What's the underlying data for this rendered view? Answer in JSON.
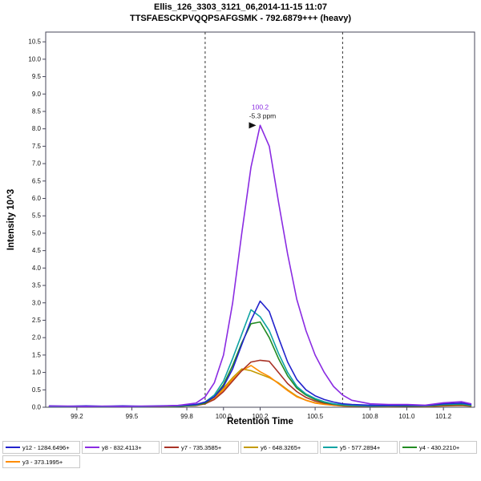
{
  "title": {
    "line1": "Ellis_126_3303_3121_06,2014-11-15 11:07",
    "line2": "TTSFAESCKPVQQPSAFGSMK - 792.6879+++ (heavy)"
  },
  "chart_data": {
    "type": "line",
    "title": "TTSFAESCKPVQQPSAFGSMK - 792.6879+++ (heavy)",
    "xlabel": "Retention Time",
    "ylabel": "Intensity 10^3",
    "xlim": [
      99.03,
      101.37
    ],
    "ylim": [
      0,
      10.78
    ],
    "x_ticks": [
      99.2,
      99.5,
      99.8,
      100.0,
      100.2,
      100.5,
      100.8,
      101.0,
      101.2
    ],
    "x_tick_labels": [
      "99.2",
      "99.5",
      "99.8",
      "100.0",
      "100.2",
      "100.5",
      "100.8",
      "101.0",
      "101.2"
    ],
    "y_ticks": [
      0.0,
      0.5,
      1.0,
      1.5,
      2.0,
      2.5,
      3.0,
      3.5,
      4.0,
      4.5,
      5.0,
      5.5,
      6.0,
      6.5,
      7.0,
      7.5,
      8.0,
      8.5,
      9.0,
      9.5,
      10.0,
      10.5
    ],
    "grid": false,
    "legend_position": "bottom",
    "peak_boundaries": [
      99.9,
      100.65
    ],
    "annotation": {
      "x": 100.2,
      "y": 8.1,
      "label": "100.2",
      "sub": "-5.3 ppm",
      "label_color": "#8a2be2"
    },
    "x": [
      99.05,
      99.15,
      99.25,
      99.35,
      99.45,
      99.55,
      99.65,
      99.75,
      99.85,
      99.9,
      99.95,
      100.0,
      100.05,
      100.1,
      100.15,
      100.2,
      100.25,
      100.3,
      100.35,
      100.4,
      100.45,
      100.5,
      100.55,
      100.6,
      100.65,
      100.7,
      100.8,
      100.9,
      101.0,
      101.1,
      101.2,
      101.3,
      101.35
    ],
    "series": [
      {
        "name": "y12 - 1284.6496+",
        "color": "#2222cc",
        "values": [
          0.04,
          0.03,
          0.04,
          0.03,
          0.04,
          0.03,
          0.04,
          0.05,
          0.08,
          0.15,
          0.3,
          0.6,
          1.1,
          1.8,
          2.5,
          3.05,
          2.75,
          2.0,
          1.3,
          0.8,
          0.5,
          0.33,
          0.22,
          0.15,
          0.1,
          0.08,
          0.06,
          0.05,
          0.06,
          0.05,
          0.1,
          0.12,
          0.08
        ]
      },
      {
        "name": "y8 - 832.4113+",
        "color": "#8a2be2",
        "values": [
          0.03,
          0.03,
          0.02,
          0.03,
          0.02,
          0.03,
          0.03,
          0.05,
          0.12,
          0.3,
          0.7,
          1.5,
          3.0,
          5.0,
          6.9,
          8.1,
          7.5,
          5.9,
          4.4,
          3.1,
          2.2,
          1.5,
          1.0,
          0.6,
          0.35,
          0.2,
          0.1,
          0.08,
          0.08,
          0.06,
          0.13,
          0.16,
          0.1
        ]
      },
      {
        "name": "y7 - 735.3585+",
        "color": "#a93226",
        "values": [
          0.02,
          0.02,
          0.02,
          0.02,
          0.02,
          0.02,
          0.02,
          0.03,
          0.05,
          0.1,
          0.22,
          0.45,
          0.75,
          1.05,
          1.3,
          1.35,
          1.32,
          1.0,
          0.68,
          0.45,
          0.28,
          0.18,
          0.12,
          0.08,
          0.05,
          0.04,
          0.03,
          0.03,
          0.03,
          0.03,
          0.05,
          0.06,
          0.04
        ]
      },
      {
        "name": "y6 - 648.3265+",
        "color": "#c49a00",
        "values": [
          0.02,
          0.02,
          0.02,
          0.02,
          0.02,
          0.02,
          0.02,
          0.03,
          0.06,
          0.12,
          0.28,
          0.55,
          0.85,
          1.1,
          1.05,
          0.95,
          0.85,
          0.7,
          0.5,
          0.32,
          0.2,
          0.13,
          0.09,
          0.06,
          0.04,
          0.03,
          0.03,
          0.02,
          0.03,
          0.02,
          0.04,
          0.05,
          0.03
        ]
      },
      {
        "name": "y5 - 577.2894+",
        "color": "#0fa3a3",
        "values": [
          0.02,
          0.02,
          0.02,
          0.02,
          0.02,
          0.02,
          0.03,
          0.04,
          0.07,
          0.15,
          0.35,
          0.75,
          1.4,
          2.1,
          2.8,
          2.6,
          2.2,
          1.55,
          1.0,
          0.6,
          0.38,
          0.25,
          0.16,
          0.1,
          0.07,
          0.05,
          0.04,
          0.04,
          0.05,
          0.04,
          0.08,
          0.1,
          0.06
        ]
      },
      {
        "name": "y4 - 430.2210+",
        "color": "#228b22",
        "values": [
          0.02,
          0.02,
          0.02,
          0.02,
          0.02,
          0.02,
          0.02,
          0.03,
          0.06,
          0.12,
          0.3,
          0.65,
          1.2,
          1.85,
          2.4,
          2.45,
          2.0,
          1.4,
          0.9,
          0.55,
          0.35,
          0.22,
          0.14,
          0.09,
          0.06,
          0.05,
          0.04,
          0.04,
          0.04,
          0.04,
          0.07,
          0.08,
          0.05
        ]
      },
      {
        "name": "y3 - 373.1995+",
        "color": "#ff8c00",
        "values": [
          0.02,
          0.02,
          0.02,
          0.02,
          0.02,
          0.02,
          0.02,
          0.03,
          0.05,
          0.1,
          0.25,
          0.5,
          0.8,
          1.05,
          1.2,
          1.02,
          0.88,
          0.68,
          0.48,
          0.3,
          0.2,
          0.12,
          0.08,
          0.06,
          0.04,
          0.03,
          0.03,
          0.03,
          0.03,
          0.03,
          0.05,
          0.06,
          0.04
        ]
      }
    ]
  }
}
